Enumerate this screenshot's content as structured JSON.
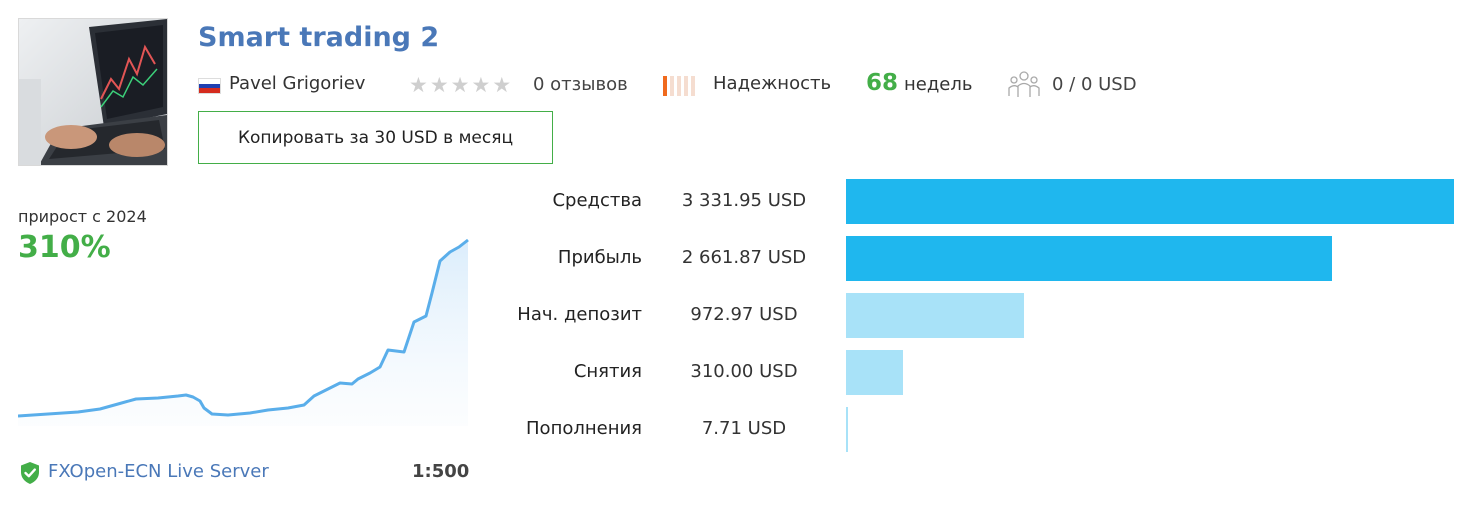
{
  "header": {
    "title": "Smart trading 2",
    "author": "Pavel Grigoriev",
    "reviews": "0 отзывов",
    "rating": 0,
    "rating_max": 5,
    "reliability_label": "Надежность",
    "reliability_level": 1,
    "reliability_max": 5,
    "weeks_number": "68",
    "weeks_label": "недель",
    "subscribers": "0 / 0 USD",
    "copy_button": "Копировать за 30 USD в месяц"
  },
  "growth": {
    "label": "прирост с 2024",
    "value": "310%"
  },
  "server": {
    "name": "FXOpen-ECN Live Server",
    "leverage": "1:500"
  },
  "stats": [
    {
      "label": "Средства",
      "value": "3 331.95 USD",
      "amount": 3331.95,
      "color": "#1fb7ee"
    },
    {
      "label": "Прибыль",
      "value": "2 661.87 USD",
      "amount": 2661.87,
      "color": "#1fb7ee"
    },
    {
      "label": "Нач. депозит",
      "value": "972.97 USD",
      "amount": 972.97,
      "color": "#a8e2f8"
    },
    {
      "label": "Снятия",
      "value": "310.00 USD",
      "amount": 310.0,
      "color": "#a8e2f8"
    },
    {
      "label": "Пополнения",
      "value": "7.71 USD",
      "amount": 7.71,
      "color": "#a8e2f8"
    }
  ],
  "colors": {
    "accent_blue": "#4a78b8",
    "accent_green": "#43ae48",
    "reliability_on": "#f06a1d",
    "line": "#5aaeea"
  },
  "icons": {
    "flag": "russia-flag-icon",
    "rating": "star-icon",
    "subscribers": "people-icon",
    "server": "shield-check-icon"
  }
}
